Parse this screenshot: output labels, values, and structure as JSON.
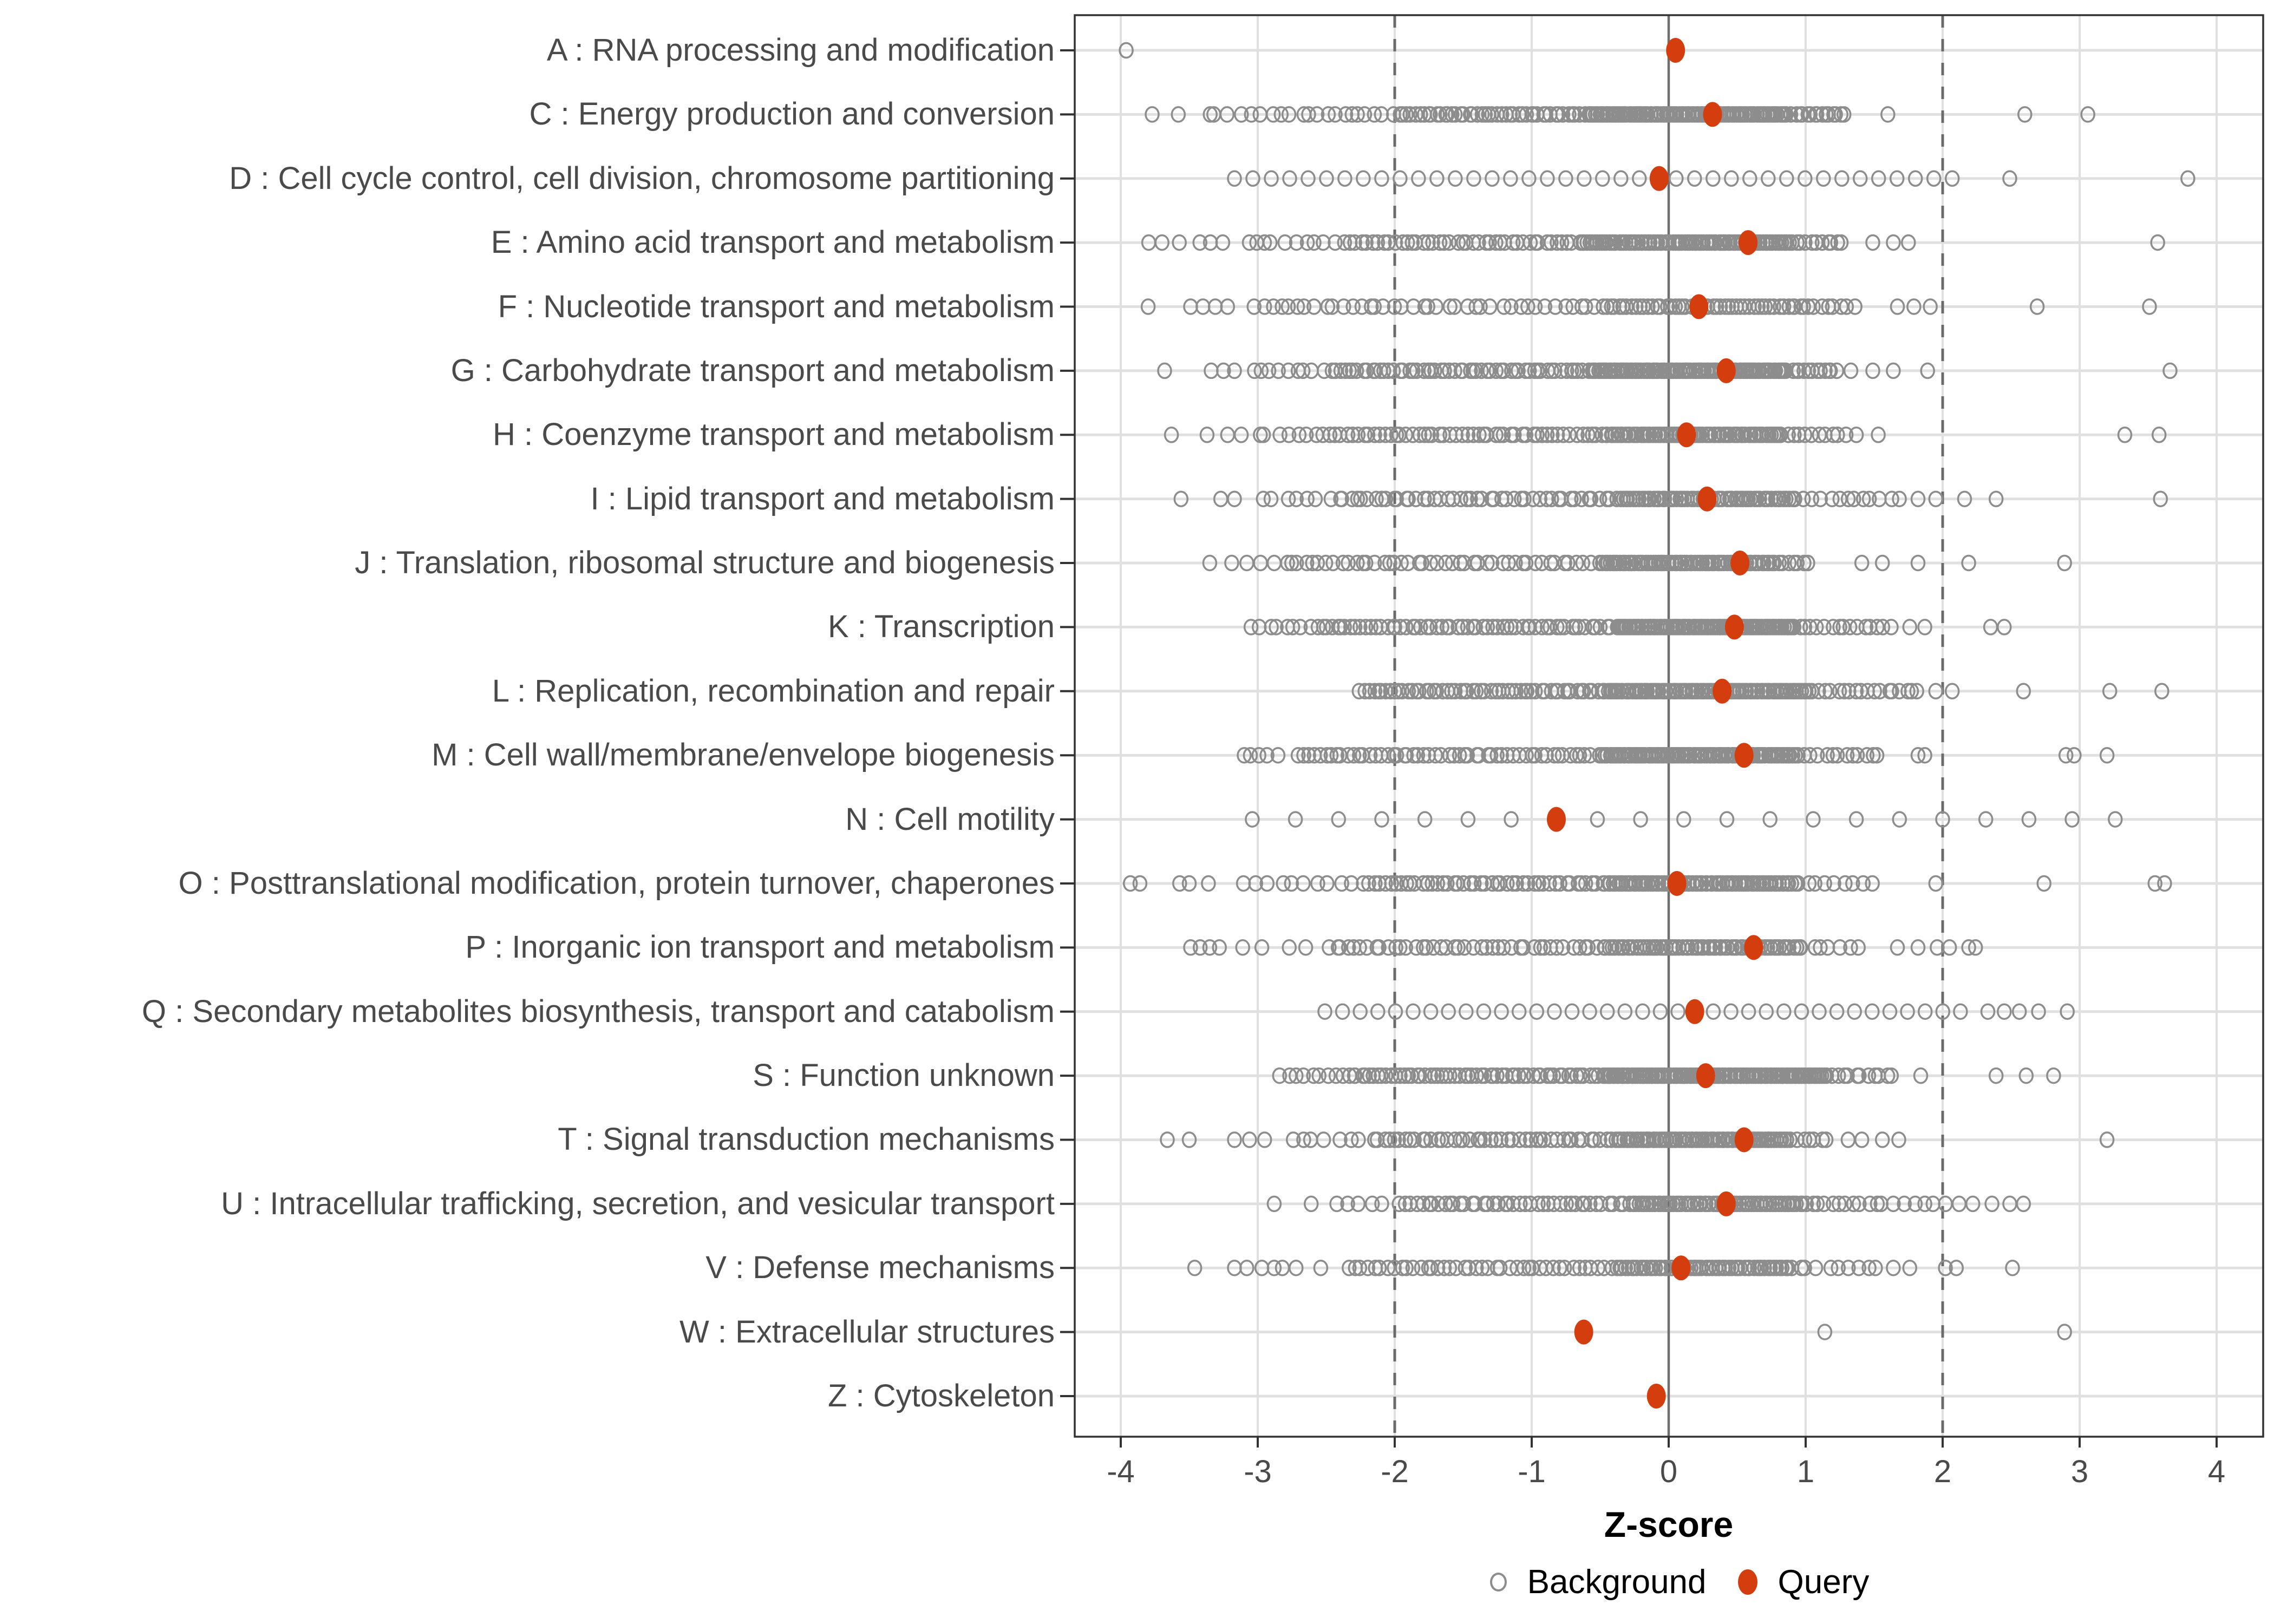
{
  "legend": {
    "background_label": "Background",
    "query_label": "Query"
  },
  "style": {
    "query_color": "#d43e0e",
    "background_stroke": "#8d8d8d",
    "grid_color": "#e0e0e0",
    "zero_line_color": "#6e6e6e",
    "dashed_line_color": "#6b6b6b",
    "tick_color": "#333333",
    "panel_border_color": "#333333",
    "axis_text_color": "#4a4a4a"
  },
  "chart_data": {
    "type": "scatter",
    "title": "",
    "xlabel": "Z-score",
    "ylabel": "",
    "xlim": [
      -4.34,
      4.34
    ],
    "x_ticks": [
      -4,
      -3,
      -2,
      -1,
      0,
      1,
      2,
      3,
      4
    ],
    "grid": "major",
    "legend_position": "bottom",
    "reference_lines": {
      "solid_x": [
        0
      ],
      "dashed_x": [
        -2,
        2
      ]
    },
    "series_names": [
      "Background",
      "Query"
    ],
    "categories": [
      "A : RNA processing and modification",
      "C : Energy production and conversion",
      "D : Cell cycle control, cell division, chromosome partitioning",
      "E : Amino acid transport and metabolism",
      "F : Nucleotide transport and metabolism",
      "G : Carbohydrate transport and metabolism",
      "H : Coenzyme transport and metabolism",
      "I : Lipid transport and metabolism",
      "J : Translation, ribosomal structure and biogenesis",
      "K : Transcription",
      "L : Replication, recombination and repair",
      "M : Cell wall/membrane/envelope biogenesis",
      "N : Cell motility",
      "O : Posttranslational modification, protein turnover, chaperones",
      "P : Inorganic ion transport and metabolism",
      "Q : Secondary metabolites biosynthesis, transport and catabolism",
      "S : Function unknown",
      "T : Signal transduction mechanisms",
      "U : Intracellular trafficking, secretion, and vesicular transport",
      "V : Defense mechanisms",
      "W : Extracellular structures",
      "Z : Cytoskeleton"
    ],
    "rows": [
      {
        "label": "A : RNA processing and modification",
        "query": 0.05,
        "even": false,
        "bg_segments": [],
        "bg_points": [
          -3.96
        ]
      },
      {
        "label": "C : Energy production and conversion",
        "query": 0.32,
        "even": false,
        "bg_segments": [
          [
            -3.87,
            -3.6,
            2
          ],
          [
            -3.38,
            -3.22,
            3
          ],
          [
            -3.1,
            -2.62,
            8
          ],
          [
            -2.56,
            -2.02,
            10
          ],
          [
            -1.97,
            -0.62,
            46
          ],
          [
            -0.58,
            0.86,
            95
          ],
          [
            0.9,
            1.28,
            15
          ]
        ],
        "bg_points": [
          1.6,
          2.6,
          3.06
        ]
      },
      {
        "label": "D : Cell cycle control, cell division, chromosome partitioning",
        "query": -0.07,
        "even": true,
        "bg_segments": [
          [
            -3.17,
            2.07,
            40
          ]
        ],
        "bg_points": [
          2.49,
          3.79
        ]
      },
      {
        "label": "E : Amino acid transport and metabolism",
        "query": 0.58,
        "even": false,
        "bg_segments": [
          [
            -3.79,
            -3.7,
            2
          ],
          [
            -3.53,
            -3.22,
            4
          ],
          [
            -3.08,
            -2.82,
            5
          ],
          [
            -2.72,
            -2.45,
            5
          ],
          [
            -2.36,
            -0.7,
            42
          ],
          [
            -0.65,
            0.9,
            88
          ],
          [
            0.93,
            1.27,
            10
          ]
        ],
        "bg_points": [
          1.49,
          1.64,
          1.75,
          3.57
        ]
      },
      {
        "label": "F : Nucleotide transport and metabolism",
        "query": 0.22,
        "even": false,
        "bg_segments": [
          [
            -3.02,
            -0.52,
            40
          ],
          [
            -0.48,
            1.02,
            50
          ],
          [
            1.06,
            1.35,
            7
          ]
        ],
        "bg_points": [
          -3.8,
          -3.49,
          -3.4,
          -3.31,
          -3.22,
          1.67,
          1.79,
          1.91,
          2.69,
          3.51
        ]
      },
      {
        "label": "G : Carbohydrate transport and metabolism",
        "query": 0.42,
        "even": false,
        "bg_segments": [
          [
            -3.05,
            -2.52,
            9
          ],
          [
            -2.47,
            -0.62,
            56
          ],
          [
            -0.58,
            0.86,
            92
          ],
          [
            0.9,
            1.22,
            12
          ]
        ],
        "bg_points": [
          -3.68,
          -3.34,
          -3.25,
          -3.17,
          1.33,
          1.49,
          1.64,
          1.89,
          3.66
        ]
      },
      {
        "label": "H : Coenzyme transport and metabolism",
        "query": 0.13,
        "even": false,
        "bg_segments": [
          [
            -3.0,
            -2.52,
            8
          ],
          [
            -2.47,
            -0.52,
            50
          ],
          [
            -0.48,
            0.82,
            72
          ],
          [
            0.86,
            1.28,
            10
          ]
        ],
        "bg_points": [
          -3.63,
          -3.37,
          -3.22,
          -3.12,
          1.37,
          1.53,
          3.33,
          3.58
        ]
      },
      {
        "label": "I : Lipid transport and metabolism",
        "query": 0.28,
        "even": false,
        "bg_segments": [
          [
            -2.95,
            -2.42,
            8
          ],
          [
            -2.37,
            -0.42,
            45
          ],
          [
            -0.38,
            0.9,
            62
          ],
          [
            0.94,
            1.67,
            13
          ]
        ],
        "bg_points": [
          -3.56,
          -3.27,
          -3.17,
          1.82,
          1.95,
          2.16,
          2.39,
          3.59
        ]
      },
      {
        "label": "J : Translation, ribosomal structure and biogenesis",
        "query": 0.52,
        "even": false,
        "bg_segments": [
          [
            -2.8,
            -0.52,
            46
          ],
          [
            -0.48,
            0.77,
            70
          ],
          [
            0.8,
            1.01,
            7
          ]
        ],
        "bg_points": [
          -3.35,
          -3.19,
          -3.08,
          -2.98,
          -2.88,
          1.41,
          1.56,
          1.82,
          2.19,
          2.89
        ]
      },
      {
        "label": "K : Transcription",
        "query": 0.48,
        "even": false,
        "bg_segments": [
          [
            -3.03,
            -2.62,
            8
          ],
          [
            -2.57,
            -0.42,
            60
          ],
          [
            -0.38,
            0.92,
            88
          ],
          [
            0.95,
            1.61,
            15
          ]
        ],
        "bg_points": [
          1.76,
          1.87,
          2.35,
          2.45
        ]
      },
      {
        "label": "L : Replication, recombination and repair",
        "query": 0.39,
        "even": false,
        "bg_segments": [
          [
            -2.25,
            -0.52,
            56
          ],
          [
            -0.48,
            1.02,
            92
          ],
          [
            1.06,
            1.82,
            18
          ]
        ],
        "bg_points": [
          1.95,
          2.07,
          2.59,
          3.22,
          3.6
        ]
      },
      {
        "label": "M : Cell wall/membrane/envelope biogenesis",
        "query": 0.55,
        "even": false,
        "bg_segments": [
          [
            -3.09,
            -2.85,
            5
          ],
          [
            -2.71,
            -0.52,
            55
          ],
          [
            -0.48,
            0.92,
            86
          ],
          [
            0.95,
            1.54,
            13
          ]
        ],
        "bg_points": [
          1.82,
          1.87,
          2.9,
          2.96,
          3.2
        ]
      },
      {
        "label": "N : Cell motility",
        "query": -0.82,
        "even": true,
        "bg_segments": [
          [
            -3.04,
            3.26,
            21
          ]
        ],
        "bg_points": []
      },
      {
        "label": "O : Posttranslational modification, protein turnover, chaperones",
        "query": 0.06,
        "even": false,
        "bg_segments": [
          [
            -3.07,
            -2.32,
            10
          ],
          [
            -2.23,
            -0.52,
            45
          ],
          [
            -0.48,
            0.92,
            76
          ],
          [
            0.95,
            1.47,
            9
          ]
        ],
        "bg_points": [
          -3.93,
          -3.86,
          -3.57,
          -3.5,
          -3.36,
          1.95,
          2.74,
          3.55,
          3.62
        ]
      },
      {
        "label": "P : Inorganic ion transport and metabolism",
        "query": 0.62,
        "even": false,
        "bg_segments": [
          [
            -2.48,
            -0.52,
            42
          ],
          [
            -0.48,
            0.95,
            65
          ],
          [
            0.98,
            1.38,
            7
          ]
        ],
        "bg_points": [
          -3.49,
          -3.42,
          -3.35,
          -3.28,
          -3.11,
          -2.97,
          -2.77,
          -2.65,
          1.67,
          1.82,
          1.96,
          2.05,
          2.19,
          2.24
        ]
      },
      {
        "label": "Q : Secondary metabolites biosynthesis, transport and catabolism",
        "query": 0.19,
        "even": true,
        "bg_segments": [
          [
            -2.51,
            2.13,
            37
          ]
        ],
        "bg_points": [
          2.33,
          2.45,
          2.56,
          2.7,
          2.91
        ]
      },
      {
        "label": "S : Function unknown",
        "query": 0.27,
        "even": false,
        "bg_segments": [
          [
            -2.82,
            -2.42,
            8
          ],
          [
            -2.37,
            -0.52,
            60
          ],
          [
            -0.48,
            1.15,
            112
          ],
          [
            1.18,
            1.64,
            11
          ]
        ],
        "bg_points": [
          1.84,
          2.39,
          2.61,
          2.81
        ]
      },
      {
        "label": "T : Signal transduction mechanisms",
        "query": 0.55,
        "even": false,
        "bg_segments": [
          [
            -2.77,
            -2.25,
            7
          ],
          [
            -2.16,
            -0.42,
            45
          ],
          [
            -0.38,
            0.86,
            72
          ],
          [
            0.9,
            1.15,
            7
          ]
        ],
        "bg_points": [
          -3.66,
          -3.5,
          -3.17,
          -3.06,
          -2.95,
          1.31,
          1.41,
          1.56,
          1.68,
          3.2
        ]
      },
      {
        "label": "U : Intracellular trafficking, secretion, and vesicular transport",
        "query": 0.42,
        "even": false,
        "bg_segments": [
          [
            -2.42,
            -2.07,
            5
          ],
          [
            -1.96,
            -0.32,
            42
          ],
          [
            -0.28,
            1.0,
            65
          ],
          [
            1.04,
            1.56,
            11
          ]
        ],
        "bg_points": [
          -2.88,
          -2.61,
          1.64,
          1.72,
          1.8,
          1.87,
          1.93,
          2.02,
          2.12,
          2.22,
          2.36,
          2.49,
          2.59
        ]
      },
      {
        "label": "V : Defense mechanisms",
        "query": 0.09,
        "even": false,
        "bg_segments": [
          [
            -2.33,
            -0.42,
            42
          ],
          [
            -0.38,
            0.9,
            60
          ],
          [
            0.94,
            1.53,
            9
          ]
        ],
        "bg_points": [
          -3.46,
          -3.17,
          -3.08,
          -2.97,
          -2.88,
          -2.82,
          -2.72,
          -2.54,
          1.64,
          1.76,
          2.02,
          2.1,
          2.51
        ]
      },
      {
        "label": "W : Extracellular structures",
        "query": -0.62,
        "even": false,
        "bg_segments": [],
        "bg_points": [
          1.14,
          2.89
        ]
      },
      {
        "label": "Z : Cytoskeleton",
        "query": -0.09,
        "even": false,
        "bg_segments": [],
        "bg_points": []
      }
    ]
  }
}
